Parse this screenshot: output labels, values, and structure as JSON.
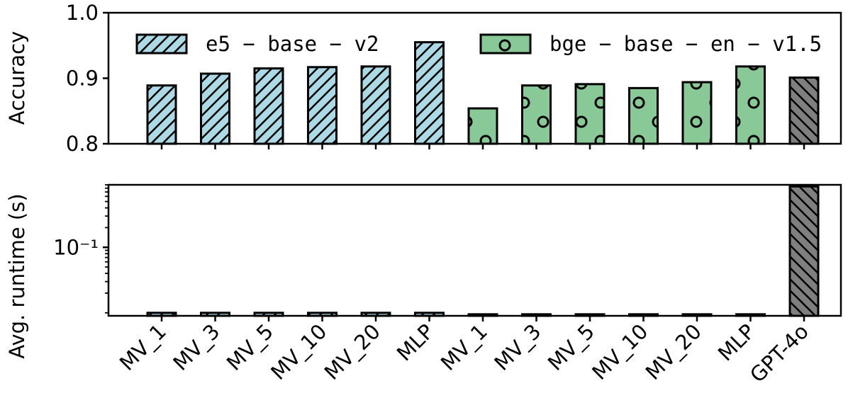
{
  "chart_data": [
    {
      "type": "bar",
      "ylabel": "Accuracy",
      "ylim": [
        0.8,
        1.0
      ],
      "yticks": [
        0.8,
        0.9,
        1.0
      ],
      "ytick_labels": [
        "0.8",
        "0.9",
        "1.0"
      ],
      "legend": {
        "placement": "top",
        "entries": [
          "e5 − base − v2",
          "bge − base − en − v1.5"
        ]
      },
      "categories": [
        "MV_1",
        "MV_3",
        "MV_5",
        "MV_10",
        "MV_20",
        "MLP",
        "MV_1",
        "MV_3",
        "MV_5",
        "MV_10",
        "MV_20",
        "MLP",
        "GPT-4o"
      ],
      "series": [
        {
          "name": "e5 − base − v2",
          "values": [
            0.889,
            0.907,
            0.915,
            0.917,
            0.918,
            0.955,
            null,
            null,
            null,
            null,
            null,
            null,
            null
          ]
        },
        {
          "name": "bge − base − en − v1.5",
          "values": [
            null,
            null,
            null,
            null,
            null,
            null,
            0.854,
            0.889,
            0.891,
            0.885,
            0.894,
            0.918,
            null
          ]
        },
        {
          "values": [
            null,
            null,
            null,
            null,
            null,
            null,
            null,
            null,
            null,
            null,
            null,
            null,
            0.901
          ]
        }
      ]
    },
    {
      "type": "bar",
      "ylabel": "Avg. runtime (s)",
      "yscale": "log",
      "ylim": [
        0.009,
        0.9
      ],
      "ytick_labels": [
        "10⁻¹"
      ],
      "categories": [
        "MV_1",
        "MV_3",
        "MV_5",
        "MV_10",
        "MV_20",
        "MLP",
        "MV_1",
        "MV_3",
        "MV_5",
        "MV_10",
        "MV_20",
        "MLP",
        "GPT-4o"
      ],
      "series": [
        {
          "name": "e5 − base − v2",
          "values": [
            0.01,
            0.01,
            0.01,
            0.01,
            0.01,
            0.01,
            null,
            null,
            null,
            null,
            null,
            null,
            null
          ]
        },
        {
          "name": "bge − base − en − v1.5",
          "values": [
            null,
            null,
            null,
            null,
            null,
            null,
            0.0095,
            0.0095,
            0.0095,
            0.0095,
            0.0095,
            0.0095,
            null
          ]
        },
        {
          "values": [
            null,
            null,
            null,
            null,
            null,
            null,
            null,
            null,
            null,
            null,
            null,
            null,
            0.85
          ]
        }
      ]
    }
  ],
  "colors": {
    "e5": "#add8e6",
    "bge": "#88c997",
    "gpt": "#7f7f7f"
  }
}
